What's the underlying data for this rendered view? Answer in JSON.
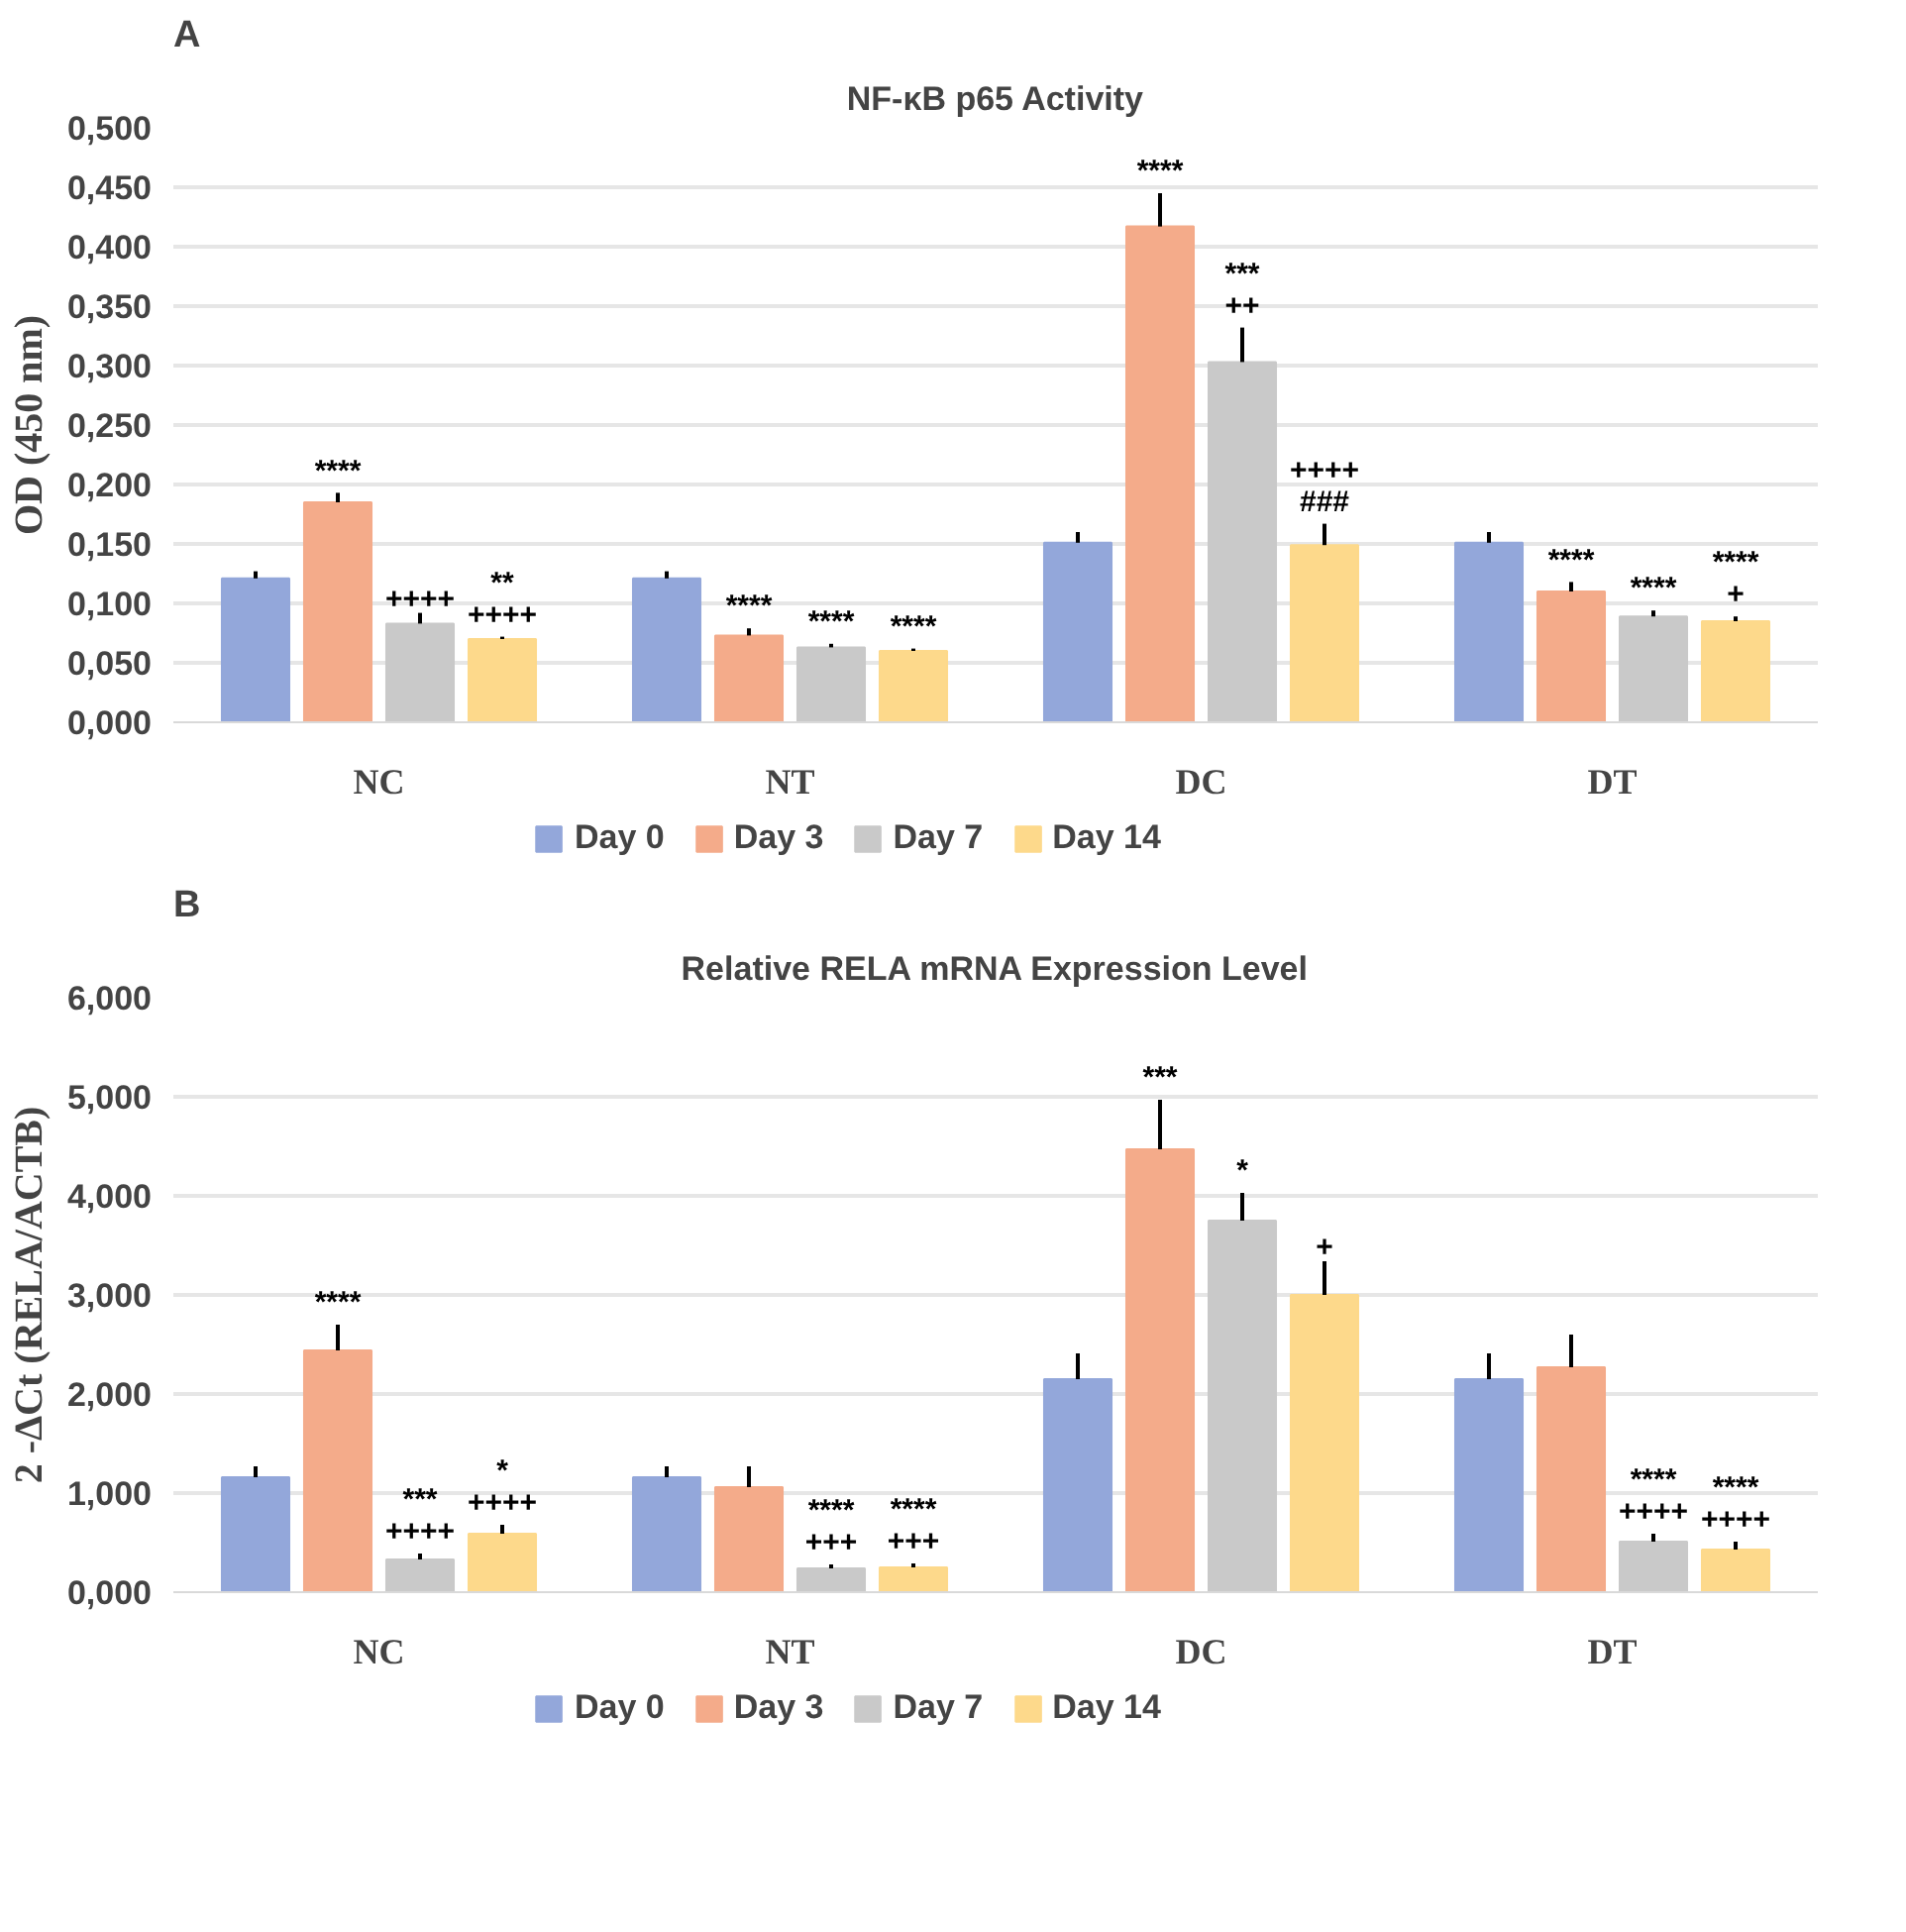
{
  "chart_data": [
    {
      "type": "bar",
      "title": "NF-κB p65 Activity",
      "ylabel": "OD (450 nm)",
      "annotations": [
        "A"
      ],
      "categories": [
        "NC",
        "NT",
        "DC",
        "DT"
      ],
      "series": [
        {
          "name": "Day 0",
          "color": "#93a7da",
          "values": [
            0.121,
            0.121,
            0.151,
            0.151
          ],
          "errors": [
            0.006,
            0.006,
            0.009,
            0.009
          ],
          "value_labels": [
            null,
            null,
            null,
            null
          ]
        },
        {
          "name": "Day 3",
          "color": "#f4ab8a",
          "values": [
            0.185,
            0.073,
            0.417,
            0.11
          ],
          "errors": [
            0.008,
            0.006,
            0.028,
            0.008
          ],
          "value_labels": [
            "****",
            "****",
            "****",
            "****"
          ]
        },
        {
          "name": "Day 7",
          "color": "#c9c9c9",
          "values": [
            0.083,
            0.063,
            0.303,
            0.089
          ],
          "errors": [
            0.009,
            0.003,
            0.029,
            0.005
          ],
          "value_labels": [
            "++++",
            "****",
            "***\n++",
            "****"
          ]
        },
        {
          "name": "Day 14",
          "color": "#fdd98b",
          "values": [
            0.07,
            0.06,
            0.149,
            0.085
          ],
          "errors": [
            0.002,
            0.002,
            0.018,
            0.004
          ],
          "value_labels": [
            "**\n++++",
            "****",
            "++++\n###",
            "****\n+"
          ]
        }
      ],
      "ylim": [
        0,
        0.5
      ],
      "yticks": [
        {
          "value": 0,
          "label": "0,000"
        },
        {
          "value": 0.05,
          "label": "0,050"
        },
        {
          "value": 0.1,
          "label": "0,100"
        },
        {
          "value": 0.15,
          "label": "0,150"
        },
        {
          "value": 0.2,
          "label": "0,200"
        },
        {
          "value": 0.25,
          "label": "0,250"
        },
        {
          "value": 0.3,
          "label": "0,300"
        },
        {
          "value": 0.35,
          "label": "0,350"
        },
        {
          "value": 0.4,
          "label": "0,400"
        },
        {
          "value": 0.45,
          "label": "0,450"
        },
        {
          "value": 0.5,
          "label": "0,500"
        }
      ],
      "grid": "y",
      "legend": "bottom"
    },
    {
      "type": "bar",
      "title": "Relative RELA mRNA Expression Level",
      "ylabel": "2 -ΔCt (RELA/ACTB)",
      "annotations": [
        "B"
      ],
      "categories": [
        "NC",
        "NT",
        "DC",
        "DT"
      ],
      "series": [
        {
          "name": "Day 0",
          "color": "#93a7da",
          "values": [
            1.16,
            1.16,
            2.15,
            2.15
          ],
          "errors": [
            0.11,
            0.11,
            0.26,
            0.26
          ],
          "value_labels": [
            null,
            null,
            null,
            null
          ]
        },
        {
          "name": "Day 3",
          "color": "#f4ab8a",
          "values": [
            2.44,
            1.06,
            4.47,
            2.27
          ],
          "errors": [
            0.26,
            0.21,
            0.5,
            0.33
          ],
          "value_labels": [
            "****",
            null,
            "***",
            null
          ]
        },
        {
          "name": "Day 7",
          "color": "#c9c9c9",
          "values": [
            0.33,
            0.24,
            3.75,
            0.51
          ],
          "errors": [
            0.06,
            0.04,
            0.28,
            0.08
          ],
          "value_labels": [
            "***\n++++",
            "****\n+++",
            "*",
            "****\n++++"
          ]
        },
        {
          "name": "Day 14",
          "color": "#fdd98b",
          "values": [
            0.59,
            0.25,
            3.0,
            0.43
          ],
          "errors": [
            0.09,
            0.04,
            0.34,
            0.08
          ],
          "value_labels": [
            "*\n++++",
            "****\n+++",
            "+",
            "****\n++++"
          ]
        }
      ],
      "ylim": [
        0,
        6
      ],
      "yticks": [
        {
          "value": 0,
          "label": "0,000"
        },
        {
          "value": 1,
          "label": "1,000"
        },
        {
          "value": 2,
          "label": "2,000"
        },
        {
          "value": 3,
          "label": "3,000"
        },
        {
          "value": 4,
          "label": "4,000"
        },
        {
          "value": 5,
          "label": "5,000"
        },
        {
          "value": 6,
          "label": "6,000"
        }
      ],
      "grid": "y",
      "legend": "bottom"
    }
  ]
}
